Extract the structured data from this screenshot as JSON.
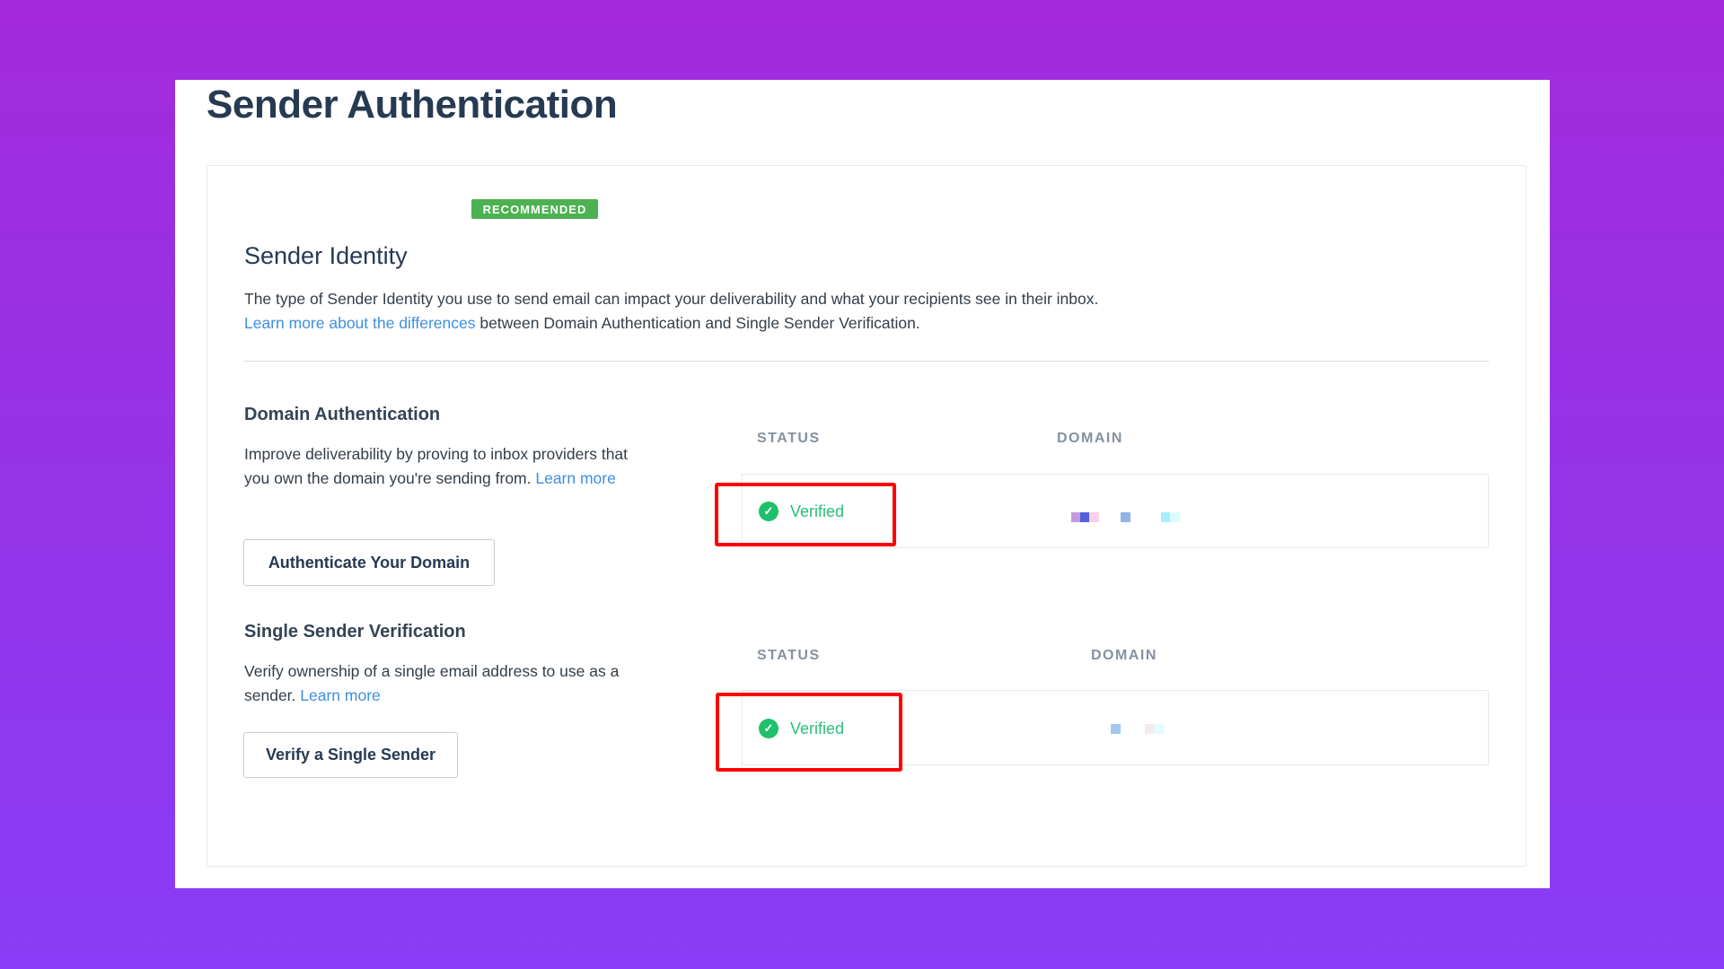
{
  "page": {
    "title": "Sender Authentication"
  },
  "sender_identity": {
    "badge": "RECOMMENDED",
    "title": "Sender Identity",
    "description": "The type of Sender Identity you use to send email can impact your deliverability and what your recipients see in their inbox.",
    "link": "Learn more about the differences",
    "description_tail": " between Domain Authentication and Single Sender Verification."
  },
  "domain_auth": {
    "title": "Domain Authentication",
    "description": "Improve deliverability by proving to inbox providers that you own the domain you're sending from. ",
    "link": "Learn more",
    "button": "Authenticate Your Domain",
    "columns": [
      "STATUS",
      "DOMAIN"
    ],
    "status": "Verified",
    "status_icon": "check-circle-icon",
    "domain_redacted": true
  },
  "single_sender": {
    "title": "Single Sender Verification",
    "description": "Verify ownership of a single email address to use as a sender. ",
    "link": "Learn more",
    "button": "Verify a Single Sender",
    "columns": [
      "STATUS",
      "DOMAIN"
    ],
    "status": "Verified",
    "status_icon": "check-circle-icon",
    "domain_redacted": true
  },
  "colors": {
    "background": "#9a30e6",
    "badge": "#4cb150",
    "verified": "#1fc06b",
    "highlight": "#ff0000",
    "link": "#3d8fe0"
  }
}
